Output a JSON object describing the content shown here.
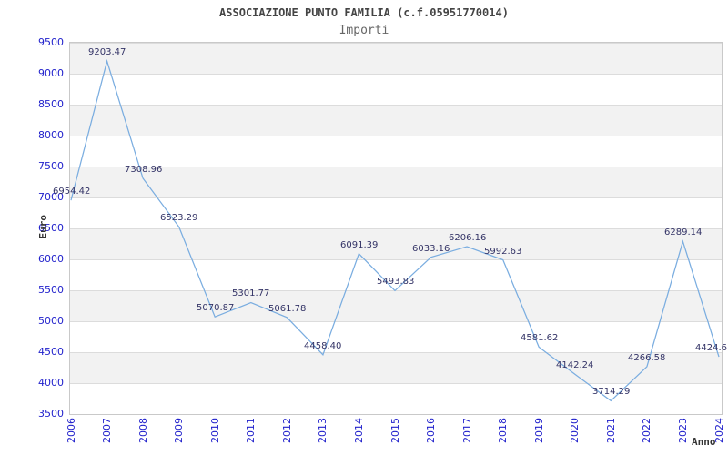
{
  "chart_data": {
    "type": "line",
    "title": "ASSOCIAZIONE PUNTO FAMILIA (c.f.05951770014)",
    "subtitle": "Importi",
    "xlabel": "Anno",
    "ylabel": "Euro",
    "x": [
      2006,
      2007,
      2008,
      2009,
      2010,
      2011,
      2012,
      2013,
      2014,
      2015,
      2016,
      2017,
      2018,
      2019,
      2020,
      2021,
      2022,
      2023,
      2024
    ],
    "values": [
      6954.42,
      9203.47,
      7308.96,
      6523.29,
      5070.87,
      5301.77,
      5061.78,
      4458.4,
      6091.39,
      5493.83,
      6033.16,
      6206.16,
      5992.63,
      4581.62,
      4142.24,
      3714.29,
      4266.58,
      6289.14,
      4424.6
    ],
    "point_labels": [
      "6954.42",
      "9203.47",
      "7308.96",
      "6523.29",
      "5070.87",
      "5301.77",
      "5061.78",
      "4458.40",
      "6091.39",
      "5493.83",
      "6033.16",
      "6206.16",
      "5992.63",
      "4581.62",
      "4142.24",
      "3714.29",
      "4266.58",
      "6289.14",
      "4424.6"
    ],
    "ylim": [
      3500,
      9500
    ],
    "ytick_step": 500,
    "legend": "none",
    "grid": "horizontal-bands",
    "colors": {
      "line": "#7aade0",
      "point_label": "#333366",
      "axis_tick_label": "#2222cc",
      "band": "#f2f2f2",
      "gridline": "#dcdcdc",
      "title": "#444444",
      "subtitle": "#666666",
      "axis_title": "#333333"
    }
  }
}
